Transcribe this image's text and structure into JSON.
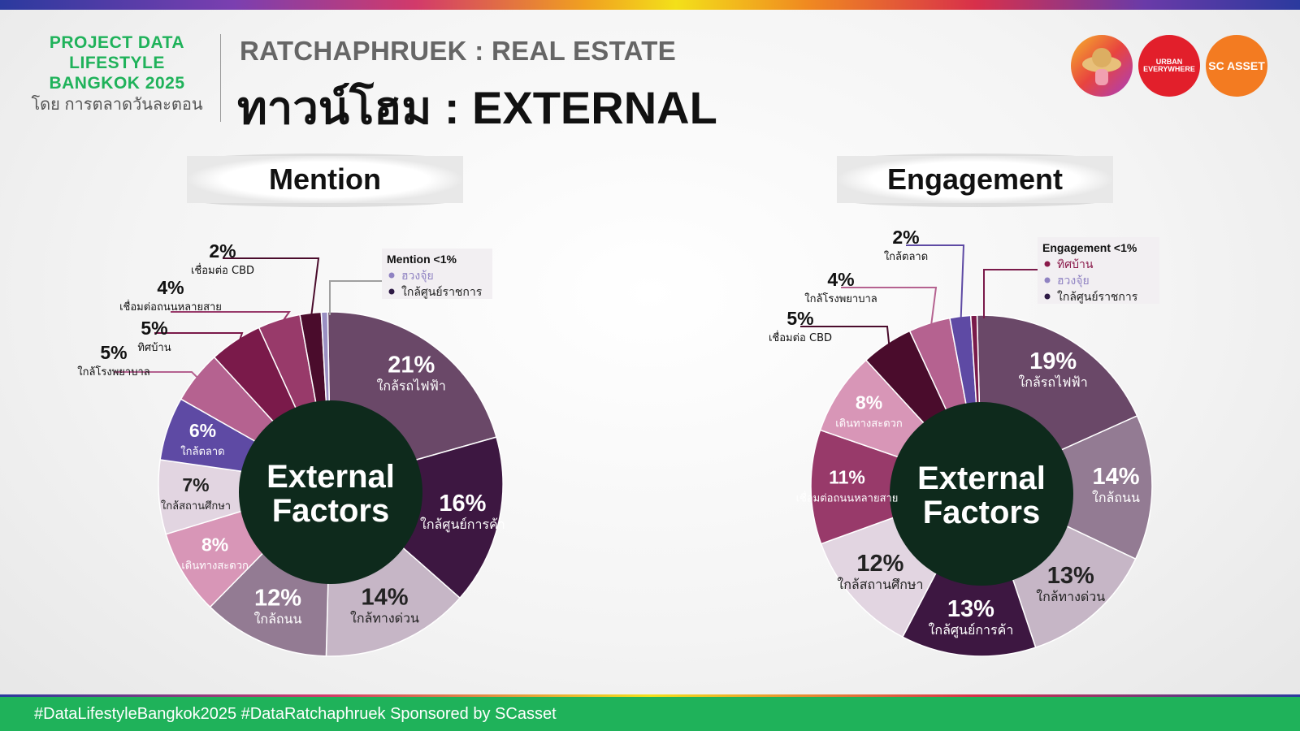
{
  "brand": {
    "line1": "PROJECT DATA",
    "line2": "LIFESTYLE",
    "line3": "BANGKOK 2025",
    "line4": "โดย การตลาดวันละตอน"
  },
  "header": {
    "subtitle": "RATCHAPHRUEK : REAL ESTATE",
    "title": "ทาวน์โฮม : EXTERNAL"
  },
  "logos": {
    "urban_line1": "URBAN",
    "urban_line2": "EVERYWHERE",
    "scasset": "SC ASSET"
  },
  "center_label": {
    "line1": "External",
    "line2": "Factors"
  },
  "footer": {
    "hashtags": "#DataLifestyleBangkok2025 #DataRatchaphruek Sponsored by SCasset"
  },
  "colors": {
    "accent_green": "#1fb25a",
    "center_fill": "#0e2a1c"
  },
  "chart_data": [
    {
      "type": "pie",
      "title": "Mention",
      "slices": [
        {
          "label": "ใกล้รถไฟฟ้า",
          "value": 21,
          "display": "21%",
          "color": "#6a4868"
        },
        {
          "label": "ใกล้ศูนย์การค้า",
          "value": 16,
          "display": "16%",
          "color": "#3d1741"
        },
        {
          "label": "ใกล้ทางด่วน",
          "value": 14,
          "display": "14%",
          "color": "#c6b6c6"
        },
        {
          "label": "ใกล้ถนน",
          "value": 12,
          "display": "12%",
          "color": "#937b93"
        },
        {
          "label": "เดินทางสะดวก",
          "value": 8,
          "display": "8%",
          "color": "#d896b7"
        },
        {
          "label": "ใกล้สถานศึกษา",
          "value": 7,
          "display": "7%",
          "color": "#e2d5e1"
        },
        {
          "label": "ใกล้ตลาด",
          "value": 6,
          "display": "6%",
          "color": "#5e4aa4"
        },
        {
          "label": "ใกล้โรงพยาบาล",
          "value": 5,
          "display": "5%",
          "color": "#b56290"
        },
        {
          "label": "ทิศบ้าน",
          "value": 5,
          "display": "5%",
          "color": "#7a1a4a"
        },
        {
          "label": "เชื่อมต่อถนนหลายสาย",
          "value": 4,
          "display": "4%",
          "color": "#983a6a"
        },
        {
          "label": "เชื่อมต่อ CBD",
          "value": 2,
          "display": "2%",
          "color": "#4a0c2c"
        },
        {
          "label": "",
          "value": 0.6,
          "display": "",
          "color": "#9a8fc2"
        }
      ],
      "legend": {
        "title": "Mention <1%",
        "items": [
          {
            "label": "ฮวงจุ้ย",
            "color": "#8f82c2"
          },
          {
            "label": "ใกล้ศูนย์ราชการ",
            "color": "#2e1a45"
          }
        ]
      }
    },
    {
      "type": "pie",
      "title": "Engagement",
      "slices": [
        {
          "label": "ใกล้รถไฟฟ้า",
          "value": 19,
          "display": "19%",
          "color": "#6a4868"
        },
        {
          "label": "ใกล้ถนน",
          "value": 14,
          "display": "14%",
          "color": "#937b93"
        },
        {
          "label": "ใกล้ทางด่วน",
          "value": 13,
          "display": "13%",
          "color": "#c6b6c6"
        },
        {
          "label": "ใกล้ศูนย์การค้า",
          "value": 13,
          "display": "13%",
          "color": "#3d1741"
        },
        {
          "label": "ใกล้สถานศึกษา",
          "value": 12,
          "display": "12%",
          "color": "#e2d5e1"
        },
        {
          "label": "เชื่อมต่อถนนหลายสาย",
          "value": 11,
          "display": "11%",
          "color": "#983a6a"
        },
        {
          "label": "เดินทางสะดวก",
          "value": 8,
          "display": "8%",
          "color": "#d896b7"
        },
        {
          "label": "เชื่อมต่อ CBD",
          "value": 5,
          "display": "5%",
          "color": "#4a0c2c"
        },
        {
          "label": "ใกล้โรงพยาบาล",
          "value": 4,
          "display": "4%",
          "color": "#b56290"
        },
        {
          "label": "ใกล้ตลาด",
          "value": 2,
          "display": "2%",
          "color": "#5e4aa4"
        },
        {
          "label": "",
          "value": 0.6,
          "display": "",
          "color": "#7a1a4a"
        }
      ],
      "legend": {
        "title": "Engagement  <1%",
        "items": [
          {
            "label": "ทิศบ้าน",
            "color": "#8a1a4a"
          },
          {
            "label": "ฮวงจุ้ย",
            "color": "#8f82c2"
          },
          {
            "label": "ใกล้ศูนย์ราชการ",
            "color": "#2e1a45"
          }
        ]
      }
    }
  ]
}
